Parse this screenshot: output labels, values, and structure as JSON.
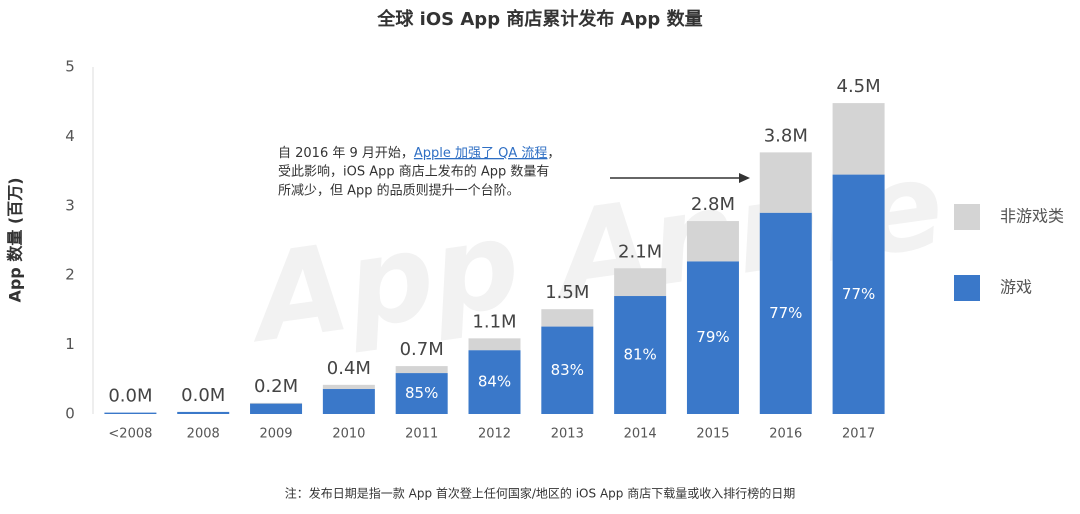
{
  "chart_data": {
    "type": "stacked_bar",
    "title": "全球 iOS App 商店累计发布 App 数量",
    "y_label": "App 数量 (百万)",
    "categories": [
      "<2008",
      "2008",
      "2009",
      "2010",
      "2011",
      "2012",
      "2013",
      "2014",
      "2015",
      "2016",
      "2017"
    ],
    "series": [
      {
        "name": "游戏",
        "color": "#3a78c9",
        "values": [
          0.02,
          0.03,
          0.15,
          0.36,
          0.59,
          0.92,
          1.26,
          1.7,
          2.2,
          2.9,
          3.45
        ]
      },
      {
        "name": "非游戏类",
        "color": "#d4d4d4",
        "values": [
          0,
          0,
          0.01,
          0.06,
          0.1,
          0.17,
          0.25,
          0.4,
          0.58,
          0.87,
          1.03
        ]
      }
    ],
    "totals": {
      "values": [
        0,
        0,
        0.2,
        0.4,
        0.7,
        1.1,
        1.5,
        2.1,
        2.8,
        3.8,
        4.5
      ],
      "value_labels": [
        "0.0M",
        "0.0M",
        "0.2M",
        "0.4M",
        "0.7M",
        "1.1M",
        "1.5M",
        "2.1M",
        "2.8M",
        "3.8M",
        "4.5M"
      ]
    },
    "game_share": {
      "values": [
        null,
        null,
        null,
        null,
        85,
        84,
        83,
        81,
        79,
        77,
        77
      ],
      "value_labels": [
        null,
        null,
        null,
        null,
        "85%",
        "84%",
        "83%",
        "81%",
        "79%",
        "77%",
        "77%"
      ]
    },
    "ylim": [
      0,
      5
    ],
    "yticks": [
      0,
      1,
      2,
      3,
      4,
      5
    ],
    "legend_position": "right",
    "annotation": [
      "自 2016 年 9 月开始，",
      "Apple 加强了 QA 流程",
      "，",
      "受此影响，iOS App 商店上发布的 App 数量有",
      "所减少，但 App 的品质则提升一个台阶。"
    ],
    "watermark": "App Annie",
    "footnote": "注：发布日期是指一款 App 首次登上任何国家/地区的 iOS App 商店下载量或收入排行榜的日期"
  }
}
